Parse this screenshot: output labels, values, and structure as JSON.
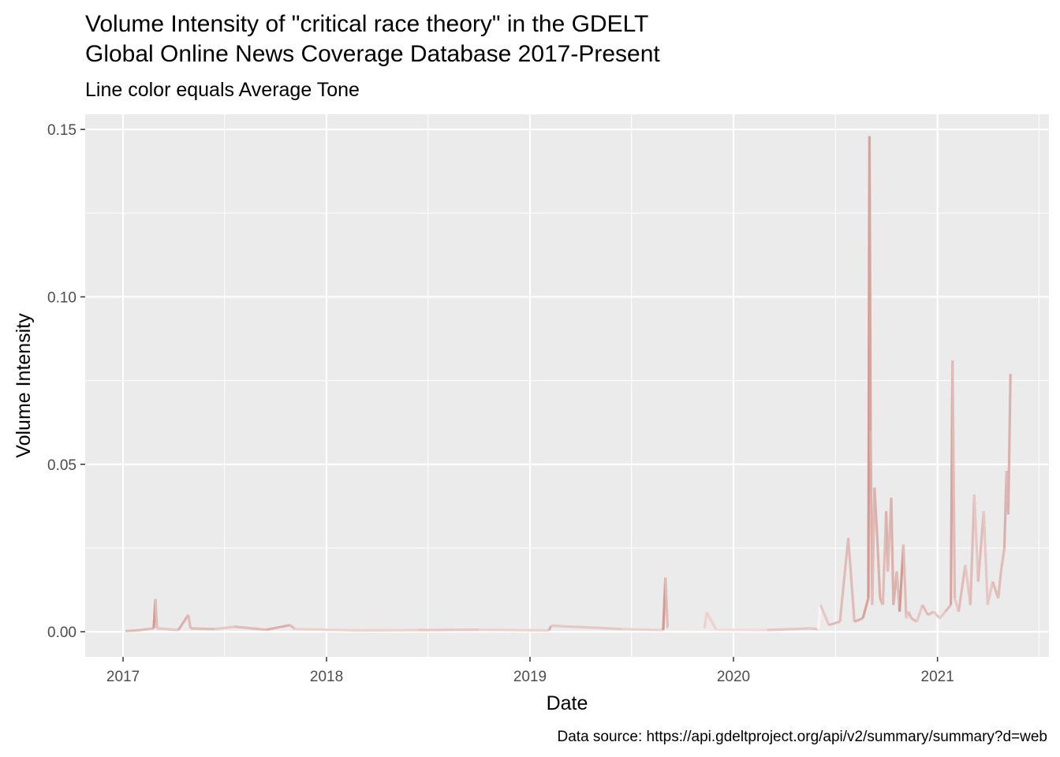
{
  "chart_data": {
    "type": "line",
    "title": [
      "Volume Intensity of \"critical race theory\" in the GDELT",
      "Global Online News Coverage Database 2017-Present"
    ],
    "subtitle": "Line color equals Average Tone",
    "xlabel": "Date",
    "ylabel": "Volume Intensity",
    "caption": "Data source: https://api.gdeltproject.org/api/v2/summary/summary?d=web",
    "x_ticks": [
      "2017",
      "2018",
      "2019",
      "2020",
      "2021"
    ],
    "y_ticks": [
      "0.00",
      "0.05",
      "0.10",
      "0.15"
    ],
    "ylim": [
      -0.0075,
      0.1545
    ],
    "xlim": [
      "2016-10-25",
      "2021-07-20"
    ],
    "grid": true,
    "colors": {
      "panel": "#ebebeb",
      "grid": "#ffffff",
      "tone_negative": "#cc8f88",
      "tone_neutral": "#ffffff"
    },
    "series": [
      {
        "x": [
          "2017-01-05",
          "2017-02-01",
          "2017-02-25",
          "2017-02-28",
          "2017-03-03",
          "2017-04-10",
          "2017-04-28",
          "2017-05-02",
          "2017-06-15",
          "2017-07-20",
          "2017-09-15",
          "2017-10-28",
          "2017-11-05",
          "2018-03-01",
          "2018-06-15",
          "2018-10-01",
          "2019-02-04",
          "2019-02-08",
          "2019-06-15",
          "2019-08-28",
          "2019-09-01",
          "2019-09-05",
          "2019-11-10",
          "2019-11-14",
          "2019-12-01",
          "2020-03-01",
          "2020-05-15",
          "2020-06-01",
          "2020-06-05",
          "2020-06-20",
          "2020-07-10",
          "2020-07-25",
          "2020-08-05",
          "2020-08-20",
          "2020-08-30",
          "2020-09-01",
          "2020-09-03",
          "2020-09-06",
          "2020-09-10",
          "2020-09-15",
          "2020-09-20",
          "2020-09-25",
          "2020-10-01",
          "2020-10-04",
          "2020-10-10",
          "2020-10-14",
          "2020-10-20",
          "2020-10-25",
          "2020-11-01",
          "2020-11-06",
          "2020-11-10",
          "2020-11-15",
          "2020-11-25",
          "2020-12-05",
          "2020-12-15",
          "2020-12-25",
          "2021-01-05",
          "2021-01-15",
          "2021-01-25",
          "2021-01-28",
          "2021-02-01",
          "2021-02-08",
          "2021-02-20",
          "2021-03-01",
          "2021-03-08",
          "2021-03-15",
          "2021-03-25",
          "2021-04-01",
          "2021-04-10",
          "2021-04-20",
          "2021-04-25",
          "2021-05-01",
          "2021-05-05",
          "2021-05-08",
          "2021-05-12"
        ],
        "y": [
          0.0002,
          0.0005,
          0.001,
          0.0098,
          0.001,
          0.0005,
          0.005,
          0.001,
          0.0008,
          0.0015,
          0.0006,
          0.002,
          0.0008,
          0.0004,
          0.0005,
          0.0006,
          0.0004,
          0.0018,
          0.0008,
          0.0005,
          0.0162,
          0.001,
          0.001,
          0.0058,
          0.0006,
          0.0005,
          0.001,
          0.0008,
          0.008,
          0.002,
          0.003,
          0.028,
          0.003,
          0.004,
          0.01,
          0.148,
          0.06,
          0.008,
          0.043,
          0.028,
          0.01,
          0.008,
          0.036,
          0.018,
          0.04,
          0.008,
          0.018,
          0.006,
          0.026,
          0.004,
          0.006,
          0.004,
          0.003,
          0.008,
          0.005,
          0.006,
          0.004,
          0.006,
          0.008,
          0.081,
          0.01,
          0.006,
          0.02,
          0.008,
          0.041,
          0.015,
          0.036,
          0.008,
          0.015,
          0.01,
          0.018,
          0.025,
          0.048,
          0.035,
          0.077
        ],
        "tone": [
          0.5,
          0.6,
          0.6,
          0.9,
          0.6,
          0.5,
          0.7,
          0.6,
          0.6,
          0.5,
          0.6,
          0.7,
          0.6,
          0.4,
          0.4,
          0.5,
          0.4,
          0.7,
          0.5,
          0.4,
          0.9,
          0.6,
          0.2,
          0.4,
          0.4,
          0.3,
          0.5,
          0.5,
          0.1,
          0.5,
          0.6,
          0.6,
          0.6,
          0.7,
          0.8,
          0.9,
          0.8,
          0.7,
          0.6,
          0.7,
          0.7,
          0.7,
          0.6,
          0.7,
          0.6,
          0.7,
          0.7,
          0.6,
          0.9,
          0.6,
          0.5,
          0.6,
          0.6,
          0.5,
          0.6,
          0.6,
          0.5,
          0.5,
          0.6,
          0.8,
          0.6,
          0.5,
          0.6,
          0.5,
          0.6,
          0.5,
          0.6,
          0.5,
          0.5,
          0.6,
          0.6,
          0.6,
          0.7,
          0.6,
          0.7
        ]
      }
    ]
  }
}
